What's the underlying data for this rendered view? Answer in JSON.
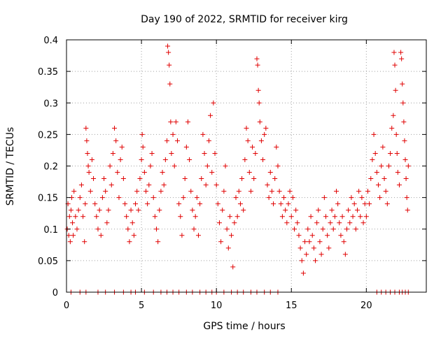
{
  "chart_data": {
    "type": "scatter",
    "title": "Day 190 of 2022, SRMTID for receiver kirg",
    "xlabel": "GPS time / hours",
    "ylabel": "SRMTID / TECUs",
    "xlim": [
      0,
      24
    ],
    "ylim": [
      0,
      0.4
    ],
    "x_ticks": [
      0,
      5,
      10,
      15,
      20
    ],
    "x_tick_labels": [
      "0",
      "5",
      "10",
      "15",
      "20"
    ],
    "y_ticks": [
      0,
      0.05,
      0.1,
      0.15,
      0.2,
      0.25,
      0.3,
      0.35,
      0.4
    ],
    "y_tick_labels": [
      "0",
      "0.05",
      "0.1",
      "0.15",
      "0.2",
      "0.25",
      "0.3",
      "0.35",
      "0.4"
    ],
    "grid": true,
    "marker": "+",
    "color": "#e00000",
    "series": [
      {
        "name": "SRMTID",
        "points": [
          [
            0.05,
            0.1
          ],
          [
            0.1,
            0.14
          ],
          [
            0.15,
            0.09
          ],
          [
            0.2,
            0.12
          ],
          [
            0.25,
            0.08
          ],
          [
            0.3,
            0.13
          ],
          [
            0.35,
            0.15
          ],
          [
            0.4,
            0.11
          ],
          [
            0.45,
            0.09
          ],
          [
            0.5,
            0.16
          ],
          [
            0.6,
            0.12
          ],
          [
            0.7,
            0.1
          ],
          [
            0.8,
            0.13
          ],
          [
            0.9,
            0.15
          ],
          [
            1.0,
            0.17
          ],
          [
            1.1,
            0.12
          ],
          [
            1.2,
            0.08
          ],
          [
            1.25,
            0.14
          ],
          [
            1.3,
            0.26
          ],
          [
            1.35,
            0.24
          ],
          [
            1.4,
            0.22
          ],
          [
            1.45,
            0.2
          ],
          [
            1.5,
            0.19
          ],
          [
            1.6,
            0.16
          ],
          [
            1.7,
            0.21
          ],
          [
            1.8,
            0.18
          ],
          [
            1.9,
            0.14
          ],
          [
            2.0,
            0.12
          ],
          [
            2.1,
            0.1
          ],
          [
            2.2,
            0.13
          ],
          [
            2.3,
            0.09
          ],
          [
            2.4,
            0.15
          ],
          [
            2.5,
            0.18
          ],
          [
            2.6,
            0.16
          ],
          [
            2.7,
            0.11
          ],
          [
            2.8,
            0.13
          ],
          [
            2.9,
            0.2
          ],
          [
            3.0,
            0.17
          ],
          [
            3.1,
            0.22
          ],
          [
            3.2,
            0.26
          ],
          [
            3.3,
            0.24
          ],
          [
            3.4,
            0.19
          ],
          [
            3.5,
            0.15
          ],
          [
            3.6,
            0.21
          ],
          [
            3.7,
            0.23
          ],
          [
            3.8,
            0.18
          ],
          [
            3.9,
            0.14
          ],
          [
            4.0,
            0.12
          ],
          [
            4.1,
            0.1
          ],
          [
            4.2,
            0.08
          ],
          [
            4.3,
            0.13
          ],
          [
            4.4,
            0.11
          ],
          [
            4.5,
            0.09
          ],
          [
            4.6,
            0.14
          ],
          [
            4.7,
            0.16
          ],
          [
            4.8,
            0.13
          ],
          [
            4.9,
            0.18
          ],
          [
            5.0,
            0.21
          ],
          [
            5.05,
            0.25
          ],
          [
            5.1,
            0.23
          ],
          [
            5.2,
            0.19
          ],
          [
            5.3,
            0.16
          ],
          [
            5.4,
            0.14
          ],
          [
            5.5,
            0.17
          ],
          [
            5.6,
            0.2
          ],
          [
            5.7,
            0.22
          ],
          [
            5.8,
            0.15
          ],
          [
            5.9,
            0.12
          ],
          [
            6.0,
            0.1
          ],
          [
            6.1,
            0.08
          ],
          [
            6.2,
            0.13
          ],
          [
            6.3,
            0.16
          ],
          [
            6.4,
            0.19
          ],
          [
            6.5,
            0.17
          ],
          [
            6.6,
            0.21
          ],
          [
            6.7,
            0.24
          ],
          [
            6.75,
            0.39
          ],
          [
            6.8,
            0.38
          ],
          [
            6.85,
            0.36
          ],
          [
            6.9,
            0.33
          ],
          [
            6.95,
            0.27
          ],
          [
            7.0,
            0.22
          ],
          [
            7.1,
            0.25
          ],
          [
            7.2,
            0.2
          ],
          [
            7.3,
            0.27
          ],
          [
            7.4,
            0.24
          ],
          [
            7.5,
            0.14
          ],
          [
            7.6,
            0.12
          ],
          [
            7.7,
            0.09
          ],
          [
            7.8,
            0.15
          ],
          [
            7.9,
            0.18
          ],
          [
            8.0,
            0.23
          ],
          [
            8.1,
            0.27
          ],
          [
            8.2,
            0.21
          ],
          [
            8.3,
            0.16
          ],
          [
            8.4,
            0.13
          ],
          [
            8.5,
            0.1
          ],
          [
            8.6,
            0.12
          ],
          [
            8.7,
            0.15
          ],
          [
            8.8,
            0.09
          ],
          [
            8.9,
            0.14
          ],
          [
            9.0,
            0.18
          ],
          [
            9.1,
            0.25
          ],
          [
            9.2,
            0.22
          ],
          [
            9.3,
            0.17
          ],
          [
            9.4,
            0.2
          ],
          [
            9.5,
            0.24
          ],
          [
            9.6,
            0.28
          ],
          [
            9.7,
            0.19
          ],
          [
            9.8,
            0.3
          ],
          [
            9.9,
            0.22
          ],
          [
            10.0,
            0.17
          ],
          [
            10.1,
            0.14
          ],
          [
            10.2,
            0.11
          ],
          [
            10.3,
            0.08
          ],
          [
            10.4,
            0.13
          ],
          [
            10.5,
            0.16
          ],
          [
            10.6,
            0.2
          ],
          [
            10.7,
            0.1
          ],
          [
            10.8,
            0.07
          ],
          [
            10.9,
            0.12
          ],
          [
            11.0,
            0.09
          ],
          [
            11.1,
            0.04
          ],
          [
            11.2,
            0.11
          ],
          [
            11.3,
            0.15
          ],
          [
            11.4,
            0.12
          ],
          [
            11.5,
            0.16
          ],
          [
            11.6,
            0.14
          ],
          [
            11.7,
            0.18
          ],
          [
            11.8,
            0.13
          ],
          [
            11.9,
            0.21
          ],
          [
            12.0,
            0.26
          ],
          [
            12.1,
            0.24
          ],
          [
            12.2,
            0.19
          ],
          [
            12.3,
            0.16
          ],
          [
            12.4,
            0.23
          ],
          [
            12.5,
            0.18
          ],
          [
            12.6,
            0.22
          ],
          [
            12.7,
            0.37
          ],
          [
            12.75,
            0.36
          ],
          [
            12.8,
            0.32
          ],
          [
            12.85,
            0.3
          ],
          [
            12.9,
            0.27
          ],
          [
            13.0,
            0.24
          ],
          [
            13.1,
            0.21
          ],
          [
            13.2,
            0.25
          ],
          [
            13.3,
            0.26
          ],
          [
            13.4,
            0.17
          ],
          [
            13.5,
            0.15
          ],
          [
            13.6,
            0.19
          ],
          [
            13.7,
            0.16
          ],
          [
            13.8,
            0.14
          ],
          [
            13.9,
            0.18
          ],
          [
            14.0,
            0.23
          ],
          [
            14.1,
            0.2
          ],
          [
            14.2,
            0.16
          ],
          [
            14.3,
            0.14
          ],
          [
            14.4,
            0.12
          ],
          [
            14.5,
            0.15
          ],
          [
            14.6,
            0.13
          ],
          [
            14.7,
            0.11
          ],
          [
            14.8,
            0.14
          ],
          [
            14.9,
            0.16
          ],
          [
            15.0,
            0.12
          ],
          [
            15.1,
            0.15
          ],
          [
            15.2,
            0.1
          ],
          [
            15.3,
            0.13
          ],
          [
            15.4,
            0.11
          ],
          [
            15.5,
            0.09
          ],
          [
            15.6,
            0.07
          ],
          [
            15.7,
            0.05
          ],
          [
            15.8,
            0.03
          ],
          [
            15.9,
            0.08
          ],
          [
            16.0,
            0.06
          ],
          [
            16.1,
            0.1
          ],
          [
            16.2,
            0.08
          ],
          [
            16.3,
            0.12
          ],
          [
            16.4,
            0.09
          ],
          [
            16.5,
            0.07
          ],
          [
            16.6,
            0.05
          ],
          [
            16.7,
            0.11
          ],
          [
            16.8,
            0.13
          ],
          [
            16.9,
            0.08
          ],
          [
            17.0,
            0.06
          ],
          [
            17.1,
            0.1
          ],
          [
            17.2,
            0.15
          ],
          [
            17.3,
            0.12
          ],
          [
            17.4,
            0.09
          ],
          [
            17.5,
            0.07
          ],
          [
            17.6,
            0.11
          ],
          [
            17.7,
            0.13
          ],
          [
            17.8,
            0.1
          ],
          [
            17.9,
            0.12
          ],
          [
            18.0,
            0.16
          ],
          [
            18.1,
            0.14
          ],
          [
            18.2,
            0.11
          ],
          [
            18.3,
            0.09
          ],
          [
            18.4,
            0.12
          ],
          [
            18.5,
            0.08
          ],
          [
            18.6,
            0.06
          ],
          [
            18.7,
            0.1
          ],
          [
            18.8,
            0.13
          ],
          [
            18.9,
            0.11
          ],
          [
            19.0,
            0.15
          ],
          [
            19.1,
            0.12
          ],
          [
            19.2,
            0.14
          ],
          [
            19.3,
            0.1
          ],
          [
            19.4,
            0.13
          ],
          [
            19.5,
            0.16
          ],
          [
            19.6,
            0.12
          ],
          [
            19.7,
            0.15
          ],
          [
            19.8,
            0.11
          ],
          [
            19.9,
            0.14
          ],
          [
            20.0,
            0.12
          ],
          [
            20.1,
            0.16
          ],
          [
            20.2,
            0.14
          ],
          [
            20.3,
            0.18
          ],
          [
            20.4,
            0.21
          ],
          [
            20.5,
            0.25
          ],
          [
            20.6,
            0.22
          ],
          [
            20.7,
            0.19
          ],
          [
            20.8,
            0.17
          ],
          [
            20.9,
            0.15
          ],
          [
            21.0,
            0.2
          ],
          [
            21.1,
            0.23
          ],
          [
            21.2,
            0.18
          ],
          [
            21.3,
            0.16
          ],
          [
            21.4,
            0.14
          ],
          [
            21.5,
            0.2
          ],
          [
            21.6,
            0.22
          ],
          [
            21.7,
            0.26
          ],
          [
            21.8,
            0.28
          ],
          [
            21.85,
            0.38
          ],
          [
            21.9,
            0.36
          ],
          [
            21.95,
            0.32
          ],
          [
            22.0,
            0.25
          ],
          [
            22.05,
            0.22
          ],
          [
            22.1,
            0.19
          ],
          [
            22.2,
            0.17
          ],
          [
            22.3,
            0.38
          ],
          [
            22.35,
            0.37
          ],
          [
            22.4,
            0.33
          ],
          [
            22.45,
            0.3
          ],
          [
            22.5,
            0.27
          ],
          [
            22.55,
            0.24
          ],
          [
            22.6,
            0.21
          ],
          [
            22.65,
            0.18
          ],
          [
            22.7,
            0.15
          ],
          [
            22.75,
            0.13
          ],
          [
            22.8,
            0.2
          ],
          [
            0.3,
            0.0
          ],
          [
            0.9,
            0.0
          ],
          [
            1.3,
            0.0
          ],
          [
            2.1,
            0.0
          ],
          [
            2.6,
            0.0
          ],
          [
            3.2,
            0.0
          ],
          [
            3.8,
            0.0
          ],
          [
            4.3,
            0.0
          ],
          [
            4.6,
            0.0
          ],
          [
            5.2,
            0.0
          ],
          [
            5.8,
            0.0
          ],
          [
            6.3,
            0.0
          ],
          [
            6.7,
            0.0
          ],
          [
            7.1,
            0.0
          ],
          [
            7.5,
            0.0
          ],
          [
            8.0,
            0.0
          ],
          [
            8.4,
            0.0
          ],
          [
            8.9,
            0.0
          ],
          [
            9.3,
            0.0
          ],
          [
            9.7,
            0.0
          ],
          [
            10.0,
            0.0
          ],
          [
            10.5,
            0.0
          ],
          [
            11.0,
            0.0
          ],
          [
            11.4,
            0.0
          ],
          [
            11.8,
            0.0
          ],
          [
            12.3,
            0.0
          ],
          [
            12.7,
            0.0
          ],
          [
            13.2,
            0.0
          ],
          [
            13.6,
            0.0
          ],
          [
            14.1,
            0.0
          ],
          [
            20.7,
            0.0
          ],
          [
            21.0,
            0.0
          ],
          [
            21.3,
            0.0
          ],
          [
            21.6,
            0.0
          ],
          [
            21.9,
            0.0
          ],
          [
            22.2,
            0.0
          ],
          [
            22.4,
            0.0
          ],
          [
            22.6,
            0.0
          ],
          [
            22.8,
            0.0
          ]
        ]
      }
    ]
  }
}
